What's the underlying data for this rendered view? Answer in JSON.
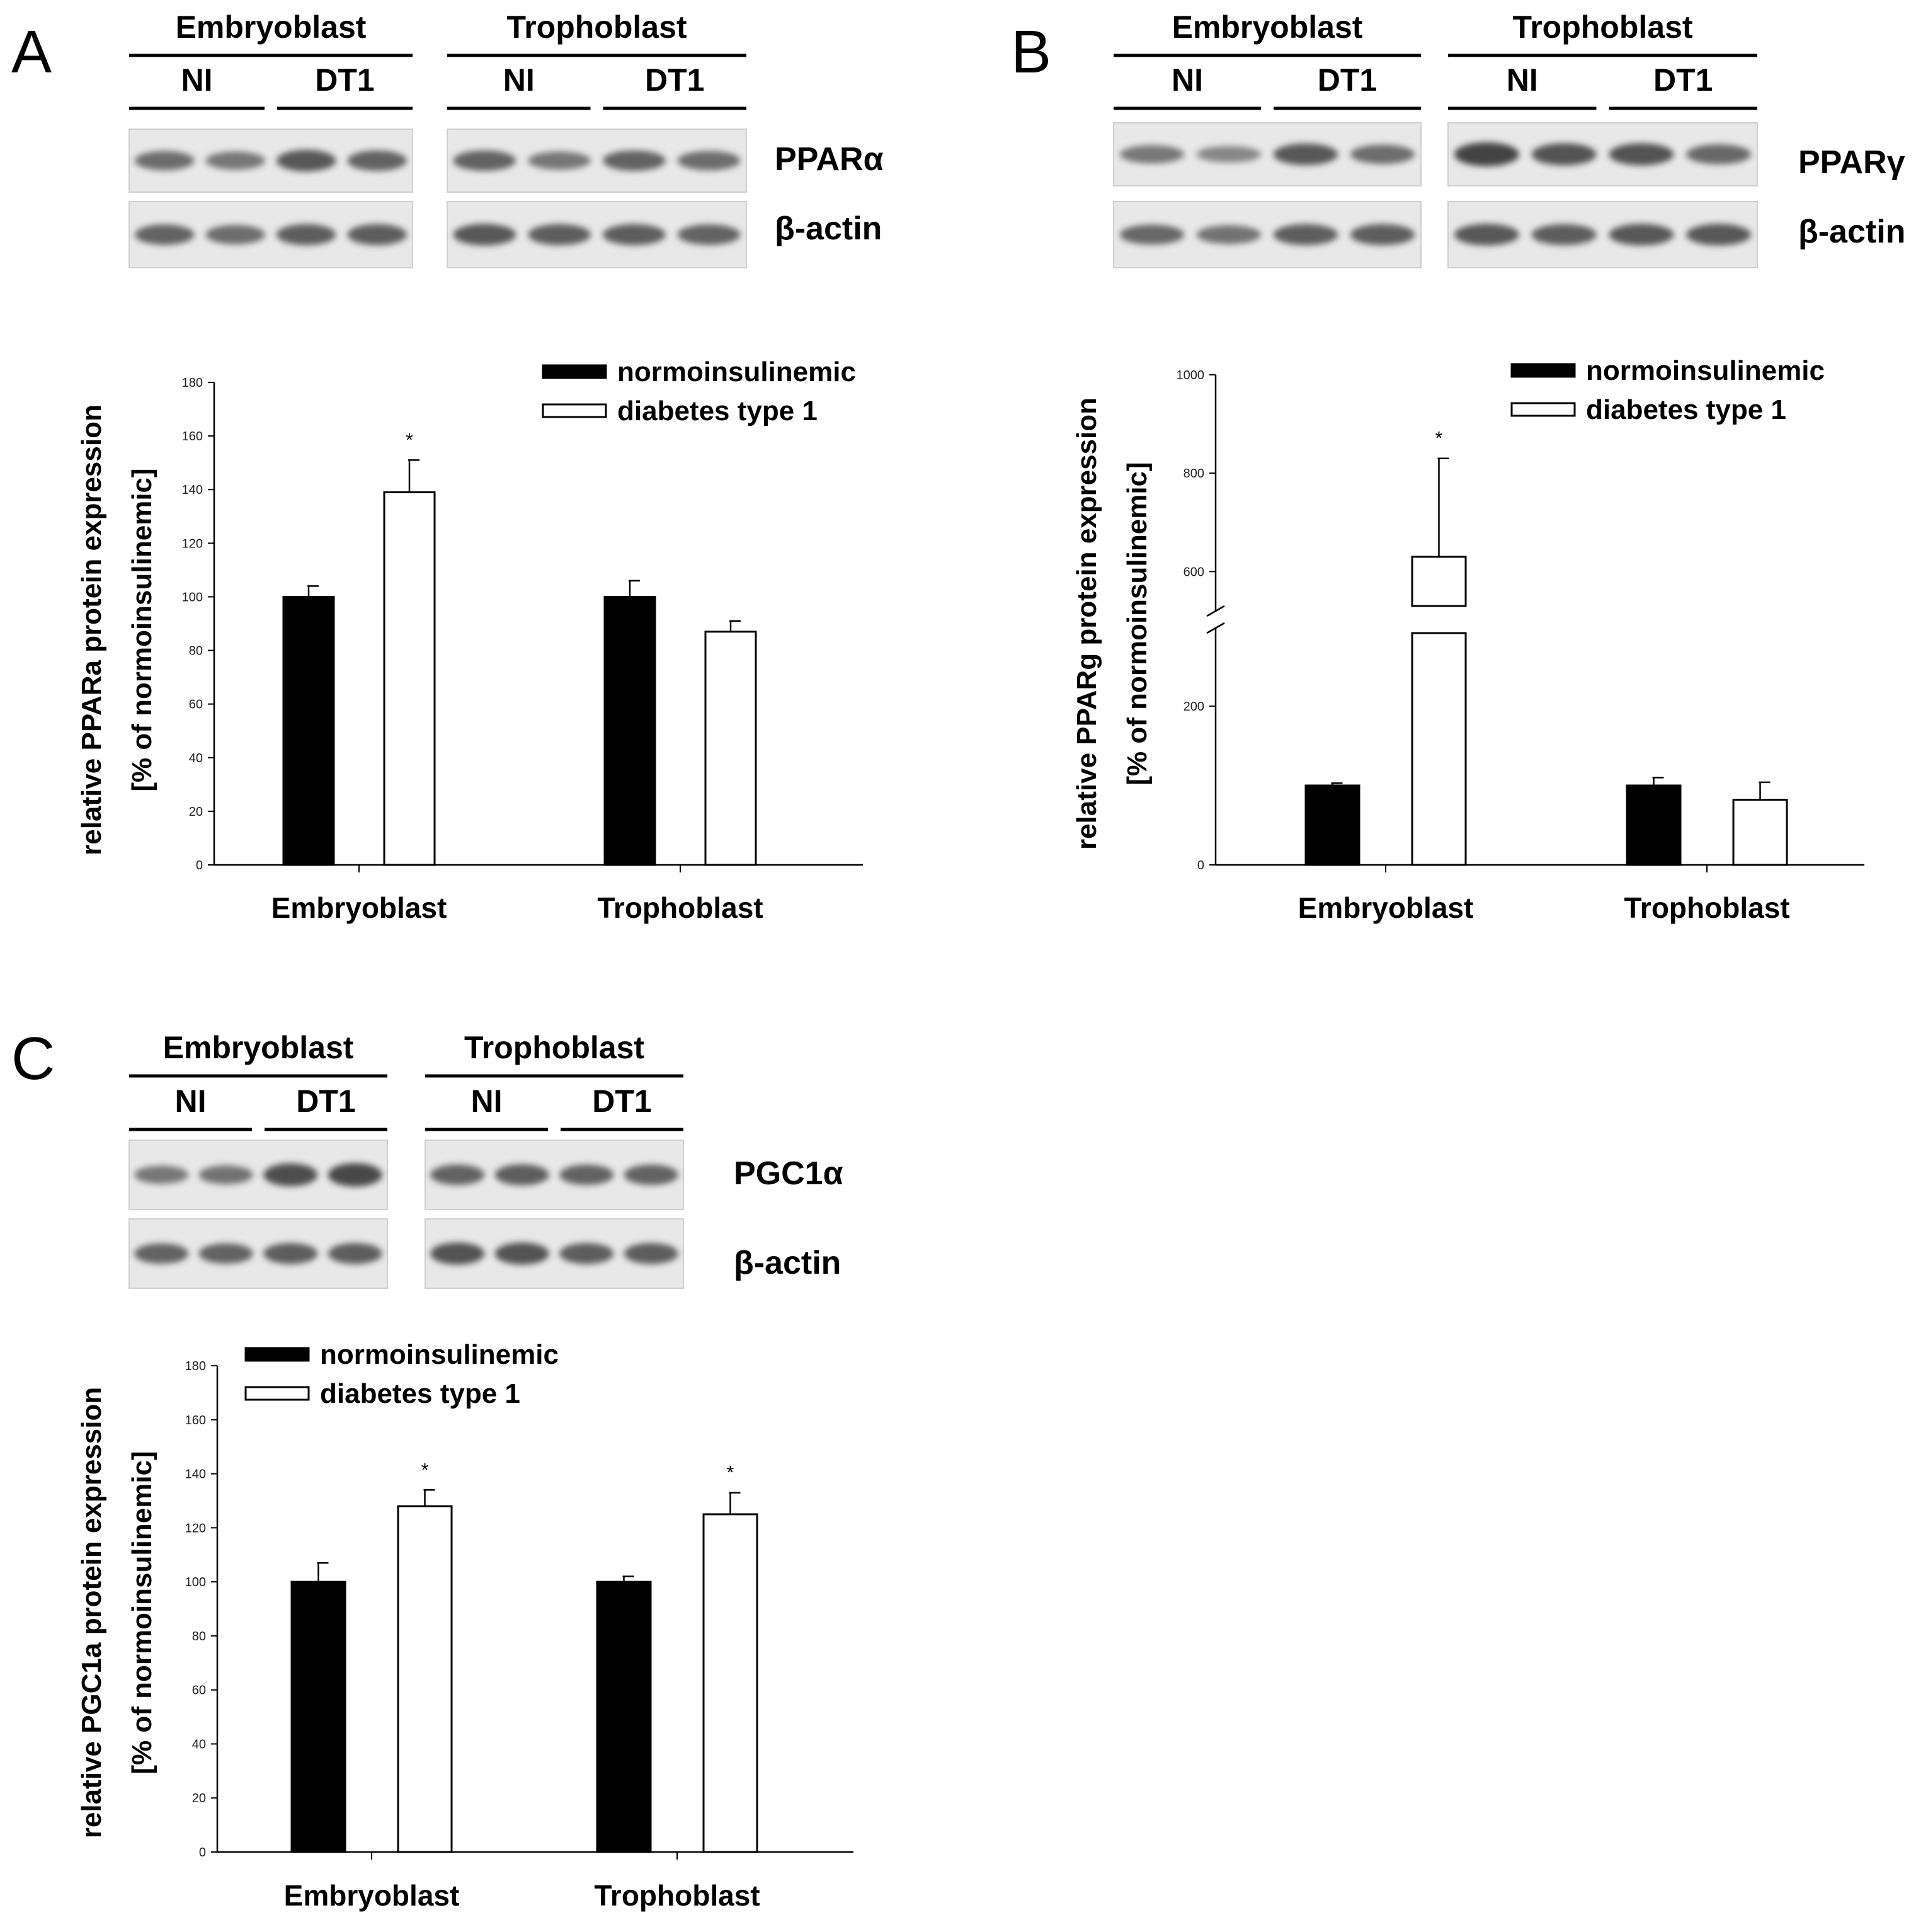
{
  "colors": {
    "normoinsulinemic": "#000000",
    "diabetes": "#ffffff",
    "blot_bg": "#e8e8e8",
    "band": "#3a3a3a"
  },
  "panels": [
    {
      "letter": "A",
      "blot": {
        "groups": [
          "Embryoblast",
          "Trophoblast"
        ],
        "subgroups": [
          "NI",
          "DT1"
        ],
        "rows": [
          {
            "label": "PPARα",
            "intensity": [
              0.6,
              0.5,
              0.8,
              0.7,
              0.7,
              0.5,
              0.7,
              0.6
            ]
          },
          {
            "label": "β-actin",
            "intensity": [
              0.7,
              0.6,
              0.75,
              0.75,
              0.8,
              0.75,
              0.75,
              0.7
            ]
          }
        ]
      },
      "chart_data": {
        "type": "bar",
        "categories": [
          "Embryoblast",
          "Trophoblast"
        ],
        "series": [
          {
            "name": "normoinsulinemic",
            "values": [
              100,
              100
            ],
            "errors": [
              4,
              6
            ]
          },
          {
            "name": "diabetes type 1",
            "values": [
              139,
              87
            ],
            "errors": [
              12,
              4
            ]
          }
        ],
        "significance": [
          [
            "",
            "*"
          ],
          [
            "",
            ""
          ]
        ],
        "ylabel_line1": "relative PPARa protein expression",
        "ylabel_line2": "[% of normoinsulinemic]",
        "ylim": [
          0,
          180
        ],
        "yticks": [
          0,
          20,
          40,
          60,
          80,
          100,
          120,
          140,
          160,
          180
        ],
        "legend_position": "top-right"
      }
    },
    {
      "letter": "B",
      "blot": {
        "groups": [
          "Embryoblast",
          "Trophoblast"
        ],
        "subgroups": [
          "NI",
          "DT1"
        ],
        "rows": [
          {
            "label": "PPARγ",
            "intensity": [
              0.5,
              0.35,
              0.8,
              0.6,
              1.0,
              0.85,
              0.85,
              0.65
            ]
          },
          {
            "label": "β-actin",
            "intensity": [
              0.65,
              0.55,
              0.75,
              0.75,
              0.8,
              0.75,
              0.8,
              0.8
            ]
          }
        ]
      },
      "chart_data": {
        "type": "bar",
        "broken_axis": true,
        "categories": [
          "Embryoblast",
          "Trophoblast"
        ],
        "series": [
          {
            "name": "normoinsulinemic",
            "values": [
              100,
              100
            ],
            "errors": [
              3,
              10
            ]
          },
          {
            "name": "diabetes type 1",
            "values": [
              630,
              82
            ],
            "errors": [
              200,
              22
            ]
          }
        ],
        "significance": [
          [
            "",
            "*"
          ],
          [
            "",
            ""
          ]
        ],
        "ylabel_line1": "relative PPARg protein expression",
        "ylabel_line2": "[% of normoinsulinemic]",
        "yticks": [
          0,
          200,
          600,
          800,
          1000
        ],
        "lower_range": [
          0,
          292
        ],
        "upper_range": [
          530,
          1000
        ],
        "legend_position": "top-right"
      }
    },
    {
      "letter": "C",
      "blot": {
        "groups": [
          "Embryoblast",
          "Trophoblast"
        ],
        "subgroups": [
          "NI",
          "DT1"
        ],
        "rows": [
          {
            "label": "PGC1α",
            "intensity": [
              0.5,
              0.55,
              0.9,
              0.95,
              0.7,
              0.75,
              0.7,
              0.7
            ]
          },
          {
            "label": "β-actin",
            "intensity": [
              0.7,
              0.7,
              0.75,
              0.75,
              0.85,
              0.85,
              0.75,
              0.75
            ]
          }
        ]
      },
      "chart_data": {
        "type": "bar",
        "categories": [
          "Embryoblast",
          "Trophoblast"
        ],
        "series": [
          {
            "name": "normoinsulinemic",
            "values": [
              100,
              100
            ],
            "errors": [
              7,
              2
            ]
          },
          {
            "name": "diabetes type 1",
            "values": [
              128,
              125
            ],
            "errors": [
              6,
              8
            ]
          }
        ],
        "significance": [
          [
            "",
            "*"
          ],
          [
            "",
            "*"
          ]
        ],
        "ylabel_line1": "relative PGC1a protein expression",
        "ylabel_line2": "[% of normoinsulinemic]",
        "ylim": [
          0,
          180
        ],
        "yticks": [
          0,
          20,
          40,
          60,
          80,
          100,
          120,
          140,
          160,
          180
        ],
        "legend_position": "top-left"
      }
    }
  ]
}
